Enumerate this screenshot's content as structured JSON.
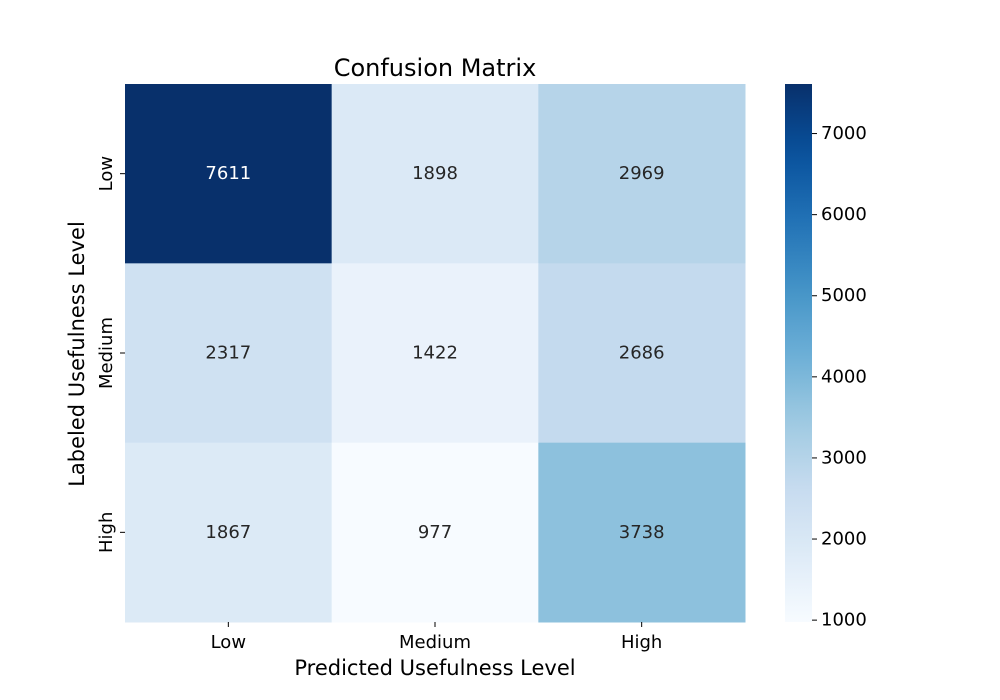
{
  "chart_data": {
    "type": "heatmap",
    "title": "Confusion Matrix",
    "xlabel": "Predicted Usefulness Level",
    "ylabel": "Labeled Usefulness Level",
    "x_categories": [
      "Low",
      "Medium",
      "High"
    ],
    "y_categories": [
      "Low",
      "Medium",
      "High"
    ],
    "values": [
      [
        7611,
        1898,
        2969
      ],
      [
        2317,
        1422,
        2686
      ],
      [
        1867,
        977,
        3738
      ]
    ],
    "colormap": "Blues",
    "color_range": [
      977,
      7611
    ],
    "colorbar_ticks": [
      1000,
      2000,
      3000,
      4000,
      5000,
      6000,
      7000
    ],
    "colors": {
      "low": "#f7fbff",
      "high": "#08306b",
      "annotation_dark": "#262626",
      "annotation_light": "#ffffff"
    }
  }
}
